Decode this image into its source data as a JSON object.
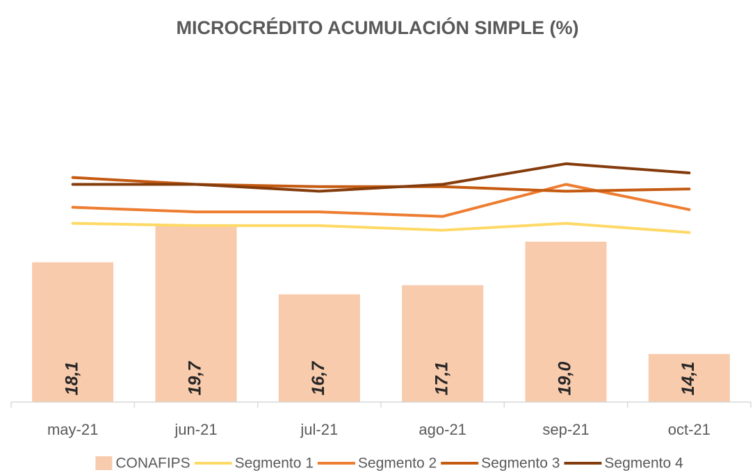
{
  "chart_data": {
    "type": "bar-line",
    "title": "MICROCRÉDITO ACUMULACIÓN SIMPLE (%)",
    "categories": [
      "may-21",
      "jun-21",
      "jul-21",
      "ago-21",
      "sep-21",
      "oct-21"
    ],
    "ylim": [
      12,
      27
    ],
    "series": [
      {
        "name": "CONAFIPS",
        "type": "bar",
        "color": "#F8CBAD",
        "values": [
          18.1,
          19.7,
          16.7,
          17.1,
          19.0,
          14.1
        ],
        "value_labels": [
          "18,1",
          "19,7",
          "16,7",
          "17,1",
          "19,0",
          "14,1"
        ]
      },
      {
        "name": "Segmento 1",
        "type": "line",
        "color": "#FFD966",
        "values": [
          19.8,
          19.7,
          19.7,
          19.5,
          19.8,
          19.4
        ]
      },
      {
        "name": "Segmento 2",
        "type": "line",
        "color": "#ED7D31",
        "values": [
          20.5,
          20.3,
          20.3,
          20.1,
          21.5,
          20.4
        ]
      },
      {
        "name": "Segmento 3",
        "type": "line",
        "color": "#C55A11",
        "values": [
          21.8,
          21.5,
          21.4,
          21.4,
          21.2,
          21.3
        ]
      },
      {
        "name": "Segmento 4",
        "type": "line",
        "color": "#843C0C",
        "values": [
          21.5,
          21.5,
          21.2,
          21.5,
          22.4,
          22.0
        ]
      }
    ],
    "legend": "bottom"
  }
}
